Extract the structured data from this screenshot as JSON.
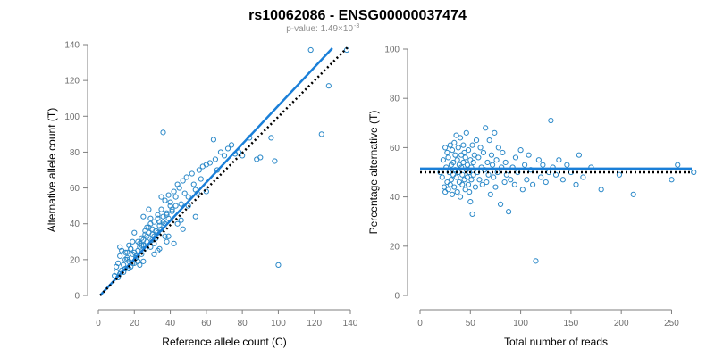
{
  "title": "rs10062086 - ENSG00000037474",
  "subtitle": {
    "prefix": "p-value: 1.49×10",
    "exponent": "-3"
  },
  "colors": {
    "points": "#2a88c8",
    "fit_line": "#1a7fd8",
    "reference_line": "#000000",
    "axis": "#7f7f7f",
    "tick_text": "#6e6e6e"
  },
  "chart_data": [
    {
      "type": "scatter",
      "xlabel": "Reference allele count (C)",
      "ylabel": "Alternative allele count (T)",
      "xlim": [
        0,
        140
      ],
      "ylim": [
        0,
        140
      ],
      "xticks": [
        0,
        20,
        40,
        60,
        80,
        100,
        120,
        140
      ],
      "yticks": [
        0,
        20,
        40,
        60,
        80,
        100,
        120,
        140
      ],
      "grid": false,
      "fit_line": {
        "style": "solid",
        "x": [
          1,
          130
        ],
        "y": [
          0,
          138
        ]
      },
      "reference_line": {
        "style": "dotted",
        "x": [
          1,
          139
        ],
        "y": [
          0,
          139
        ]
      },
      "points": {
        "x": [
          9,
          10,
          11,
          10,
          12,
          11,
          13,
          12,
          14,
          15,
          13,
          16,
          14,
          15,
          17,
          12,
          18,
          16,
          19,
          17,
          20,
          18,
          21,
          19,
          22,
          20,
          23,
          21,
          24,
          22,
          25,
          23,
          26,
          24,
          27,
          25,
          28,
          26,
          29,
          27,
          30,
          28,
          31,
          29,
          32,
          30,
          33,
          31,
          34,
          32,
          35,
          33,
          36,
          34,
          37,
          35,
          38,
          36,
          39,
          37,
          40,
          38,
          41,
          39,
          42,
          40,
          43,
          41,
          44,
          45,
          46,
          47,
          48,
          49,
          50,
          52,
          53,
          54,
          55,
          56,
          57,
          58,
          60,
          62,
          64,
          65,
          66,
          68,
          70,
          72,
          74,
          76,
          78,
          80,
          84,
          88,
          90,
          96,
          98,
          100,
          118,
          124,
          128,
          138,
          36,
          43,
          27,
          33,
          25,
          31,
          28,
          35,
          39,
          44,
          47,
          20,
          22,
          18,
          16,
          24,
          26,
          30,
          32,
          34,
          38,
          42,
          46,
          50,
          54,
          60,
          15,
          17,
          19,
          21,
          23,
          25,
          29,
          31,
          33,
          37
        ],
        "y": [
          11,
          13,
          10,
          16,
          12,
          18,
          14,
          22,
          17,
          15,
          25,
          20,
          13,
          24,
          19,
          27,
          16,
          21,
          23,
          28,
          18,
          26,
          22,
          30,
          19,
          24,
          29,
          21,
          32,
          25,
          31,
          27,
          36,
          23,
          33,
          28,
          35,
          26,
          40,
          30,
          34,
          38,
          29,
          43,
          32,
          37,
          45,
          33,
          41,
          36,
          48,
          35,
          44,
          39,
          53,
          37,
          46,
          41,
          56,
          40,
          52,
          45,
          48,
          43,
          58,
          50,
          55,
          47,
          62,
          60,
          51,
          64,
          57,
          66,
          55,
          68,
          62,
          59,
          57,
          70,
          65,
          72,
          73,
          74,
          87,
          76,
          70,
          80,
          78,
          82,
          84,
          79,
          80,
          78,
          88,
          76,
          77,
          88,
          75,
          17,
          137,
          90,
          117,
          137,
          91,
          50,
          38,
          43,
          44,
          41,
          48,
          55,
          33,
          40,
          37,
          35,
          30,
          26,
          24,
          28,
          34,
          31,
          36,
          26,
          30,
          29,
          42,
          50,
          44,
          58,
          20,
          15,
          18,
          21,
          17,
          19,
          27,
          23,
          25,
          33
        ]
      }
    },
    {
      "type": "scatter",
      "xlabel": "Total number of reads",
      "ylabel": "Percentage alternative (T)",
      "xlim": [
        0,
        270
      ],
      "ylim": [
        0,
        100
      ],
      "xticks": [
        0,
        50,
        100,
        150,
        200,
        250
      ],
      "yticks": [
        0,
        20,
        40,
        60,
        80,
        100
      ],
      "grid": false,
      "fit_line": {
        "style": "solid",
        "y": 51.5
      },
      "reference_line": {
        "style": "dotted",
        "y": 50
      },
      "points": {
        "x": [
          20,
          22,
          23,
          24,
          25,
          25,
          26,
          27,
          27,
          28,
          28,
          29,
          30,
          30,
          31,
          31,
          32,
          32,
          33,
          33,
          34,
          34,
          35,
          35,
          36,
          36,
          37,
          37,
          38,
          38,
          39,
          39,
          40,
          40,
          41,
          41,
          42,
          42,
          43,
          43,
          44,
          44,
          45,
          45,
          46,
          46,
          47,
          47,
          48,
          48,
          49,
          49,
          50,
          50,
          51,
          51,
          52,
          52,
          53,
          53,
          54,
          55,
          56,
          57,
          58,
          59,
          60,
          61,
          62,
          63,
          64,
          65,
          66,
          67,
          68,
          69,
          70,
          71,
          72,
          73,
          74,
          75,
          76,
          77,
          78,
          80,
          81,
          82,
          84,
          85,
          86,
          88,
          90,
          92,
          94,
          95,
          97,
          100,
          102,
          104,
          106,
          108,
          110,
          112,
          115,
          118,
          120,
          122,
          125,
          128,
          130,
          132,
          135,
          138,
          142,
          146,
          150,
          155,
          158,
          162,
          170,
          180,
          198,
          212,
          250,
          256,
          272
        ],
        "y": [
          50,
          48,
          55,
          44,
          60,
          42,
          52,
          58,
          46,
          43,
          56,
          50,
          61,
          45,
          53,
          47,
          59,
          41,
          54,
          49,
          62,
          44,
          57,
          51,
          48,
          65,
          42,
          55,
          50,
          60,
          46,
          53,
          64,
          40,
          52,
          57,
          49,
          45,
          61,
          54,
          47,
          58,
          43,
          56,
          51,
          66,
          48,
          53,
          45,
          59,
          50,
          42,
          55,
          38,
          52,
          47,
          61,
          33,
          54,
          49,
          57,
          44,
          63,
          50,
          56,
          47,
          60,
          52,
          45,
          58,
          51,
          68,
          46,
          54,
          49,
          63,
          41,
          57,
          53,
          48,
          66,
          44,
          55,
          50,
          60,
          37,
          52,
          58,
          46,
          54,
          49,
          34,
          47,
          52,
          45,
          56,
          50,
          59,
          43,
          53,
          47,
          57,
          51,
          45,
          14,
          55,
          48,
          53,
          46,
          50,
          71,
          52,
          49,
          55,
          47,
          53,
          50,
          45,
          57,
          48,
          52,
          43,
          49,
          41,
          47,
          53,
          50
        ]
      }
    }
  ]
}
